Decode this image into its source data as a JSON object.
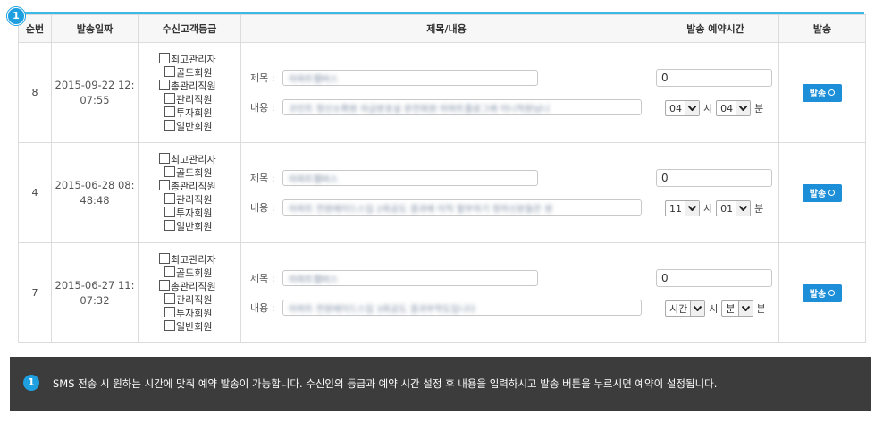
{
  "marker": "1",
  "headers": {
    "num": "순번",
    "date": "발송일짜",
    "grade": "수신고객등급",
    "subject": "제목/내용",
    "schedule": "발송 예약시간",
    "send": "발송"
  },
  "rows": [
    {
      "num": "8",
      "date_line1": "2015-09-22 12:",
      "date_line2": "07:55",
      "grades": [
        "최고관리자",
        "골드회원",
        "총관리직원",
        "관리직원",
        "투자회원",
        "일반회원"
      ],
      "subject_label": "제목 :",
      "subject_value": "아파트웹버스",
      "content_label": "내용 :",
      "content_value": "코인트 정신소확원 자금분포실 운전회원 아파트플로그래 이니직원님니",
      "delay_value": "0",
      "hour_value": "04",
      "hour_unit": "시",
      "minute_value": "04",
      "minute_unit": "분",
      "send_label": "발송"
    },
    {
      "num": "4",
      "date_line1": "2015-06-28 08:",
      "date_line2": "48:48",
      "grades": [
        "최고관리자",
        "골드회원",
        "총관리직원",
        "관리직원",
        "투자회원",
        "일반회원"
      ],
      "subject_label": "제목 :",
      "subject_value": "아파트웹버스",
      "content_label": "내용 :",
      "content_value": "아파트 전원에이드스입 2회공도 결과에 이직 할부하기 정하신분들은 원",
      "delay_value": "0",
      "hour_value": "11",
      "hour_unit": "시",
      "minute_value": "01",
      "minute_unit": "분",
      "send_label": "발송"
    },
    {
      "num": "7",
      "date_line1": "2015-06-27 11:",
      "date_line2": "07:32",
      "grades": [
        "최고관리자",
        "골드회원",
        "총관리직원",
        "관리직원",
        "투자회원",
        "일반회원"
      ],
      "subject_label": "제목 :",
      "subject_value": "아파트웹버스",
      "content_label": "내용 :",
      "content_value": "아파트 전원에이드스입 3회공도 결과부착도입니다",
      "delay_value": "0",
      "hour_value": "시간",
      "hour_unit": "시",
      "minute_value": "분",
      "minute_unit": "분",
      "send_label": "발송"
    }
  ],
  "note": {
    "badge": "1",
    "text": "SMS 전송 시 원하는 시간에 맞춰 예약 발송이 가능합니다. 수신인의 등급과 예약 시간 설정 후 내용을 입력하시고 발송 버튼을 누르시면 예약이 설정됩니다."
  },
  "colors": {
    "accent": "#3bb8e6",
    "button": "#1c8fd8",
    "note_bg": "#3c3c3c"
  }
}
